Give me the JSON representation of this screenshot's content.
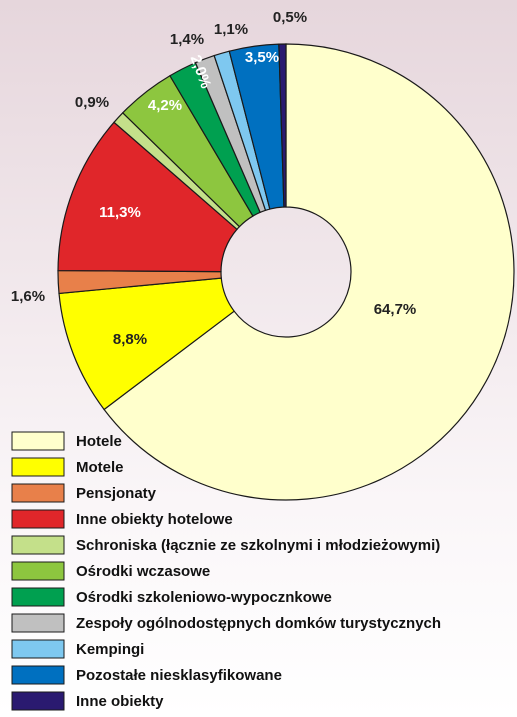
{
  "chart_data": {
    "type": "donut",
    "categories": [
      "Hotele",
      "Motele",
      "Pensjonaty",
      "Inne obiekty hotelowe",
      "Schroniska (łącznie ze szkolnymi i młodzieżowymi)",
      "Ośrodki wczasowe",
      "Ośrodki szkoleniowo-wypocznkowe",
      "Zespoły ogólnodostępnych domków turystycznych",
      "Kempingi",
      "Pozostałe niesklasyfikowane",
      "Inne obiekty"
    ],
    "values": [
      64.7,
      8.8,
      1.6,
      11.3,
      0.9,
      4.2,
      2.0,
      1.4,
      1.1,
      3.5,
      0.5
    ],
    "value_labels": [
      "64,7%",
      "8,8%",
      "1,6%",
      "11,3%",
      "0,9%",
      "4,2%",
      "2,0%",
      "1,4%",
      "1,1%",
      "3,5%",
      "0,5%"
    ],
    "colors": [
      "#ffffcc",
      "#ffff00",
      "#e8804a",
      "#e0262a",
      "#c4e08a",
      "#8dc63f",
      "#00a050",
      "#c0c0c0",
      "#7ec8f0",
      "#0070c0",
      "#2a1a70"
    ],
    "legend": "bottom-left"
  }
}
